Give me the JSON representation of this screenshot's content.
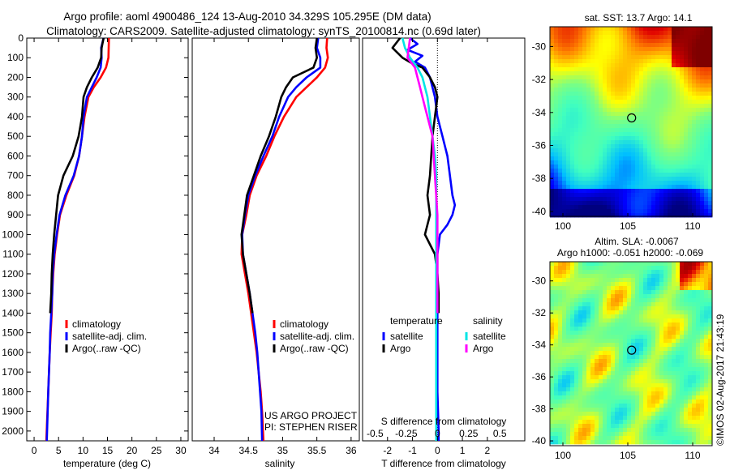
{
  "header": {
    "title_line1": "Argo profile: aoml 4900486_124 13-Aug-2010 34.329S 105.295E (DM data)",
    "title_line2": "Climatology: CARS2009. Satellite-adjusted climatology: synTS_20100814.nc (0.69d later)"
  },
  "colors": {
    "climatology": "#ff0000",
    "satellite": "#0000ff",
    "argo": "#000000",
    "satellite_salinity": "#00e5e5",
    "argo_salinity": "#ff00ff"
  },
  "credits": {
    "line1": "US ARGO PROJECT",
    "line2": "PI: STEPHEN RISER"
  },
  "watermark": "©IMOS 02-Aug-2017 21:43:19",
  "chart_data": [
    {
      "id": "temperature",
      "type": "line",
      "xlabel": "temperature (deg C)",
      "xlim": [
        -1.5,
        31.5
      ],
      "xticks": [
        0,
        5,
        10,
        15,
        20,
        25,
        30
      ],
      "ylim": [
        0,
        2050
      ],
      "yticks": [
        0,
        100,
        200,
        300,
        400,
        500,
        600,
        700,
        800,
        900,
        1000,
        1100,
        1200,
        1300,
        1400,
        1500,
        1600,
        1700,
        1800,
        1900,
        2000
      ],
      "y_reversed": true,
      "legend": [
        "climatology",
        "satellite-adj. clim.",
        "Argo(..raw -QC)"
      ],
      "series": [
        {
          "name": "climatology",
          "color": "climatology",
          "x": [
            15.3,
            15.2,
            14.7,
            13.6,
            12.2,
            11.1,
            10.3,
            9.8,
            9.2,
            8.2,
            6.6,
            5.3,
            4.7,
            4.2,
            3.9,
            3.7,
            3.6,
            3.4,
            3.2,
            2.9,
            2.5
          ],
          "y": [
            0,
            100,
            150,
            200,
            250,
            300,
            400,
            500,
            600,
            700,
            800,
            900,
            1000,
            1100,
            1200,
            1300,
            1400,
            1500,
            1600,
            1800,
            2050
          ]
        },
        {
          "name": "satellite-adj. clim.",
          "color": "satellite",
          "x": [
            14.2,
            13.7,
            13.8,
            13.6,
            12.8,
            11.8,
            10.8,
            10.1,
            9.8,
            9.2,
            8.1,
            6.4,
            5.2,
            4.6,
            4.1,
            3.8,
            3.7,
            3.5,
            3.3,
            3.2,
            2.9,
            2.6
          ],
          "y": [
            0,
            50,
            100,
            150,
            200,
            250,
            300,
            400,
            500,
            600,
            700,
            800,
            900,
            1000,
            1100,
            1200,
            1300,
            1400,
            1500,
            1600,
            1800,
            2050
          ]
        },
        {
          "name": "Argo(..raw -QC)",
          "color": "argo",
          "x": [
            14.2,
            13.8,
            13.7,
            13.0,
            11.8,
            10.8,
            10.1,
            9.8,
            9.1,
            7.9,
            6.0,
            4.9,
            4.5,
            4.1,
            3.8,
            3.6,
            3.5,
            3.3
          ],
          "y": [
            0,
            50,
            100,
            150,
            200,
            250,
            300,
            400,
            500,
            600,
            700,
            800,
            900,
            1000,
            1100,
            1200,
            1300,
            1400
          ]
        }
      ]
    },
    {
      "id": "salinity",
      "type": "line",
      "xlabel": "salinity",
      "xlim": [
        33.68,
        36.12
      ],
      "xticks": [
        34,
        34.5,
        35,
        35.5,
        36
      ],
      "ylim": [
        0,
        2050
      ],
      "y_reversed": true,
      "legend": [
        "climatology",
        "satellite-adj. clim.",
        "Argo(..raw -QC)"
      ],
      "series": [
        {
          "name": "climatology",
          "color": "climatology",
          "x": [
            35.65,
            35.64,
            35.66,
            35.62,
            35.5,
            35.35,
            35.2,
            35.02,
            34.88,
            34.76,
            34.62,
            34.52,
            34.47,
            34.41,
            34.4,
            34.45,
            34.5,
            34.54,
            34.58,
            34.62,
            34.65,
            34.68,
            34.7,
            34.72
          ],
          "y": [
            0,
            50,
            100,
            150,
            200,
            250,
            300,
            400,
            500,
            600,
            700,
            800,
            900,
            1000,
            1100,
            1200,
            1300,
            1400,
            1500,
            1600,
            1700,
            1800,
            1900,
            2050
          ]
        },
        {
          "name": "satellite-adj. clim.",
          "color": "satellite",
          "x": [
            35.52,
            35.5,
            35.55,
            35.55,
            35.35,
            35.2,
            35.08,
            34.95,
            34.85,
            34.72,
            34.6,
            34.5,
            34.45,
            34.41,
            34.42,
            34.47,
            34.52,
            34.56,
            34.6,
            34.63,
            34.65,
            34.67,
            34.69,
            34.7
          ],
          "y": [
            0,
            50,
            100,
            150,
            200,
            250,
            300,
            400,
            500,
            600,
            700,
            800,
            900,
            1000,
            1100,
            1200,
            1300,
            1400,
            1500,
            1600,
            1700,
            1800,
            1900,
            2050
          ]
        },
        {
          "name": "Argo(..raw -QC)",
          "color": "argo",
          "x": [
            35.5,
            35.48,
            35.5,
            35.45,
            35.15,
            35.05,
            34.98,
            34.9,
            34.8,
            34.68,
            34.58,
            34.48,
            34.44,
            34.4,
            34.42,
            34.47,
            34.52,
            34.56
          ],
          "y": [
            0,
            50,
            100,
            150,
            200,
            250,
            300,
            400,
            500,
            600,
            700,
            800,
            900,
            1000,
            1100,
            1200,
            1300,
            1400
          ]
        }
      ]
    },
    {
      "id": "difference",
      "type": "line",
      "xlabel": "T difference from climatology",
      "top_label": "S difference from climatology",
      "xlim": [
        -3,
        3.5
      ],
      "xticks": [
        -2,
        -1,
        0,
        1,
        2
      ],
      "xticklabels": [
        "-2",
        "-1",
        "0",
        "1",
        "2"
      ],
      "secondary_xticks": [
        -2.5,
        -1.25,
        0,
        1.25,
        2.5
      ],
      "secondary_xticklabels": [
        "-0.5",
        "-0.25",
        "0",
        "0.25",
        "0.5"
      ],
      "ylim": [
        0,
        2050
      ],
      "y_reversed": true,
      "legend_groups": [
        {
          "title": "temperature",
          "items": [
            "satellite",
            "Argo"
          ]
        },
        {
          "title": "salinity",
          "items": [
            "satellite",
            "Argo"
          ]
        }
      ],
      "series": [
        {
          "name": "satellite",
          "group": "temperature",
          "color": "satellite",
          "x": [
            -1.1,
            -0.8,
            -1.2,
            -0.6,
            -0.9,
            -0.5,
            -0.3,
            -0.1,
            0,
            0.2,
            0.4,
            0.5,
            0.6,
            0.7,
            0.6,
            0.4,
            0.1,
            0,
            0,
            0,
            0,
            0,
            0.05,
            0.05
          ],
          "y": [
            0,
            30,
            60,
            90,
            120,
            150,
            200,
            300,
            400,
            500,
            600,
            700,
            800,
            850,
            900,
            950,
            1000,
            1100,
            1200,
            1400,
            1600,
            1800,
            2000,
            2050
          ]
        },
        {
          "name": "Argo",
          "group": "temperature",
          "color": "argo",
          "x": [
            -1.5,
            -1.8,
            -1.4,
            -1.0,
            -0.6,
            -0.3,
            -0.1,
            0,
            -0.2,
            -0.3,
            -0.4,
            -0.3,
            -0.4,
            -0.5,
            -0.3,
            -0.1,
            0,
            0.05,
            0.05
          ],
          "y": [
            0,
            50,
            100,
            130,
            150,
            200,
            250,
            300,
            500,
            700,
            800,
            900,
            950,
            1000,
            1050,
            1100,
            1200,
            1300,
            1400
          ]
        },
        {
          "name": "satellite",
          "group": "salinity",
          "color": "satellite_salinity",
          "x": [
            -1.4,
            -1.3,
            -1.1,
            -0.8,
            -0.6,
            -0.5,
            -0.4,
            -0.3,
            -0.2,
            -0.1,
            -0.05,
            -0.05,
            -0.05,
            -0.05,
            -0.05,
            -0.05,
            -0.05
          ],
          "y": [
            0,
            50,
            100,
            150,
            200,
            250,
            300,
            400,
            500,
            600,
            700,
            900,
            1100,
            1300,
            1500,
            1800,
            2050
          ]
        },
        {
          "name": "Argo",
          "group": "salinity",
          "color": "argo_salinity",
          "x": [
            -1.1,
            -1.2,
            -0.9,
            -0.8,
            -0.7,
            -0.6,
            -0.5,
            -0.4,
            -0.2,
            -0.1,
            0,
            0,
            0
          ],
          "y": [
            0,
            100,
            150,
            200,
            250,
            300,
            350,
            400,
            500,
            700,
            900,
            1100,
            1400
          ]
        }
      ]
    },
    {
      "id": "sst_map",
      "type": "heatmap",
      "title": "sat. SST: 13.7 Argo: 14.1",
      "xlim": [
        99,
        111.5
      ],
      "ylim": [
        -40.3,
        -28.8
      ],
      "xticks": [
        100,
        105,
        110
      ],
      "yticks": [
        -30,
        -32,
        -34,
        -36,
        -38,
        -40
      ],
      "colormap": [
        "#00007f",
        "#0000ff",
        "#00bfff",
        "#40ffbf",
        "#7fff7f",
        "#ffff00",
        "#ff8000",
        "#e00000",
        "#7f0000"
      ],
      "marker": {
        "lon": 105.295,
        "lat": -34.329
      }
    },
    {
      "id": "sla_map",
      "type": "heatmap",
      "title_line1": "Altim. SLA: -0.0067",
      "title_line2": "Argo h1000: -0.051 h2000: -0.069",
      "xlim": [
        99,
        111.5
      ],
      "ylim": [
        -40.3,
        -28.8
      ],
      "xticks": [
        100,
        105,
        110
      ],
      "yticks": [
        -30,
        -32,
        -34,
        -36,
        -38,
        -40
      ],
      "marker": {
        "lon": 105.295,
        "lat": -34.329
      }
    }
  ]
}
